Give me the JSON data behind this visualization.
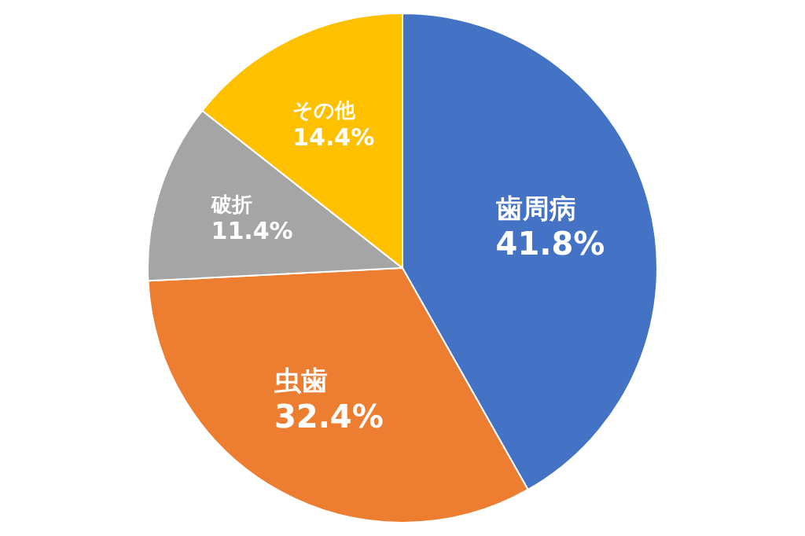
{
  "chart_data": {
    "type": "pie",
    "categories": [
      "歯周病",
      "虫歯",
      "破折",
      "その他"
    ],
    "values": [
      41.8,
      32.4,
      11.4,
      14.4
    ],
    "colors": [
      "#4472c4",
      "#ed7d31",
      "#a5a5a5",
      "#ffc000"
    ],
    "value_labels": [
      "41.8%",
      "32.4%",
      "11.4%",
      "14.4%"
    ],
    "legend": false
  }
}
